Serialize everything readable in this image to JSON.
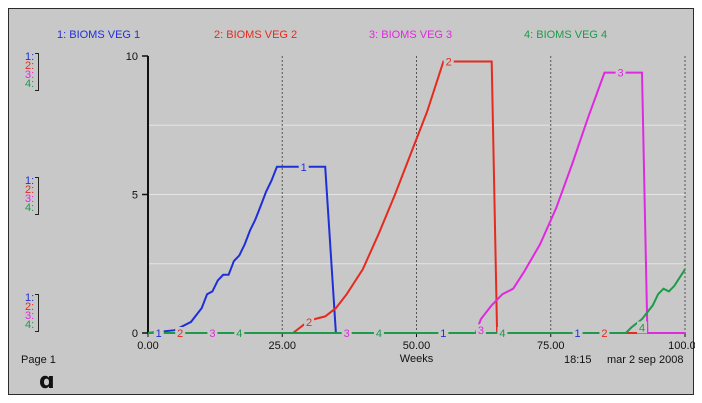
{
  "legend": [
    {
      "label": "1: BIOMS VEG 1",
      "color": "#1f2fd8"
    },
    {
      "label": "2: BIOMS VEG 2",
      "color": "#e62a1e"
    },
    {
      "label": "3: BIOMS VEG 3",
      "color": "#e128e1"
    },
    {
      "label": "4: BIOMS VEG 4",
      "color": "#1e9a4a"
    }
  ],
  "scale_markers": [
    "1:",
    "2:",
    "3:",
    "4:"
  ],
  "footer": {
    "page": "Page 1",
    "time": "18:15",
    "date": "mar 2 sep 2008",
    "lock_icon": "lock-icon"
  },
  "chart_data": {
    "type": "line",
    "xlabel": "Weeks",
    "xlim": [
      0,
      100
    ],
    "ylim": [
      0,
      10
    ],
    "x_ticks": [
      "0.00",
      "25.00",
      "50.00",
      "75.00",
      "100.00"
    ],
    "y_ticks": [
      "0",
      "5",
      "10"
    ],
    "grid": true,
    "series": [
      {
        "name": "1: BIOMS VEG 1",
        "color": "#1f2fd8",
        "points": [
          [
            0,
            0
          ],
          [
            5,
            0.1
          ],
          [
            8,
            0.4
          ],
          [
            10,
            0.9
          ],
          [
            11,
            1.4
          ],
          [
            12,
            1.5
          ],
          [
            13,
            1.9
          ],
          [
            14,
            2.1
          ],
          [
            15,
            2.1
          ],
          [
            16,
            2.6
          ],
          [
            17,
            2.8
          ],
          [
            18,
            3.2
          ],
          [
            19,
            3.7
          ],
          [
            20,
            4.1
          ],
          [
            21,
            4.6
          ],
          [
            22,
            5.1
          ],
          [
            23,
            5.5
          ],
          [
            24,
            6.0
          ],
          [
            33,
            6.0
          ],
          [
            35,
            0
          ],
          [
            100,
            0
          ]
        ]
      },
      {
        "name": "2: BIOMS VEG 2",
        "color": "#e62a1e",
        "points": [
          [
            0,
            0
          ],
          [
            27,
            0
          ],
          [
            29,
            0.3
          ],
          [
            31,
            0.5
          ],
          [
            33,
            0.6
          ],
          [
            35,
            0.9
          ],
          [
            37,
            1.4
          ],
          [
            40,
            2.3
          ],
          [
            43,
            3.6
          ],
          [
            46,
            5.0
          ],
          [
            49,
            6.5
          ],
          [
            52,
            8.0
          ],
          [
            55,
            9.8
          ],
          [
            64,
            9.8
          ],
          [
            65,
            0
          ],
          [
            100,
            0
          ]
        ]
      },
      {
        "name": "3: BIOMS VEG 3",
        "color": "#e128e1",
        "points": [
          [
            0,
            0
          ],
          [
            61,
            0
          ],
          [
            62,
            0.5
          ],
          [
            64,
            1.0
          ],
          [
            66,
            1.4
          ],
          [
            68,
            1.6
          ],
          [
            70,
            2.2
          ],
          [
            73,
            3.2
          ],
          [
            76,
            4.5
          ],
          [
            79,
            6.1
          ],
          [
            82,
            7.8
          ],
          [
            85,
            9.4
          ],
          [
            92,
            9.4
          ],
          [
            93,
            0
          ],
          [
            100,
            0
          ]
        ]
      },
      {
        "name": "4: BIOMS VEG 4",
        "color": "#1e9a4a",
        "points": [
          [
            0,
            0
          ],
          [
            89,
            0
          ],
          [
            90,
            0.2
          ],
          [
            92,
            0.5
          ],
          [
            94,
            1.0
          ],
          [
            95,
            1.4
          ],
          [
            96,
            1.6
          ],
          [
            97,
            1.5
          ],
          [
            98,
            1.7
          ],
          [
            100,
            2.3
          ]
        ]
      }
    ],
    "point_labels": [
      {
        "series": 0,
        "text": "1",
        "at": [
          [
            2,
            0
          ],
          [
            29,
            6.0
          ],
          [
            55,
            0
          ],
          [
            80,
            0
          ]
        ]
      },
      {
        "series": 1,
        "text": "2",
        "at": [
          [
            6,
            0
          ],
          [
            30,
            0.4
          ],
          [
            56,
            9.8
          ],
          [
            85,
            0
          ]
        ]
      },
      {
        "series": 2,
        "text": "3",
        "at": [
          [
            12,
            0
          ],
          [
            37,
            0
          ],
          [
            62,
            0.1
          ],
          [
            88,
            9.4
          ]
        ]
      },
      {
        "series": 3,
        "text": "4",
        "at": [
          [
            17,
            0
          ],
          [
            43,
            0
          ],
          [
            66,
            0
          ],
          [
            92,
            0.2
          ]
        ]
      }
    ]
  }
}
